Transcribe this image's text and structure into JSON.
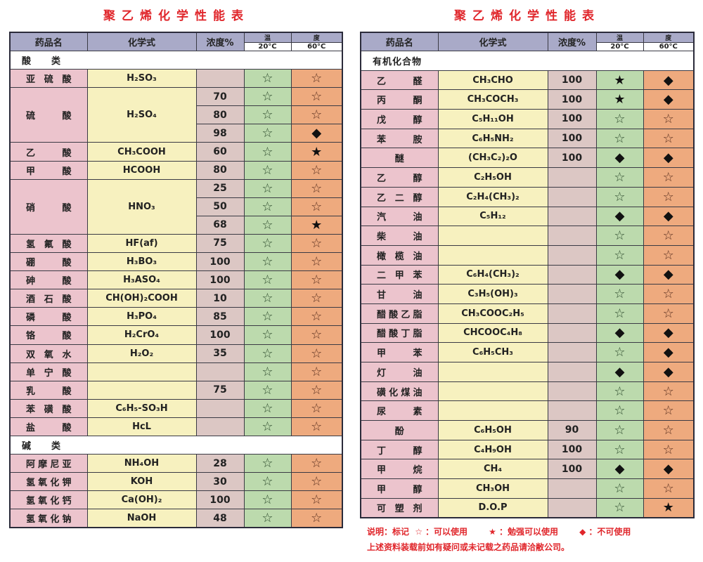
{
  "left": {
    "title": "聚乙烯化学性能表",
    "headers": {
      "name": "药品名",
      "formula": "化学式",
      "conc": "浓度%",
      "temp_a": "温",
      "temp_b": "度",
      "t20": "20°C",
      "t60": "60°C"
    },
    "sections": [
      {
        "label": "酸　　类",
        "rows": [
          {
            "name": "亚硫酸",
            "formula": "H₂SO₃",
            "items": [
              {
                "conc": "",
                "t20": "☆",
                "t60": "☆"
              }
            ]
          },
          {
            "name": "硫酸",
            "formula": "H₂SO₄",
            "items": [
              {
                "conc": "70",
                "t20": "☆",
                "t60": "☆"
              },
              {
                "conc": "80",
                "t20": "☆",
                "t60": "☆"
              },
              {
                "conc": "98",
                "t20": "☆",
                "t60": "◆"
              }
            ]
          },
          {
            "name": "乙酸",
            "formula": "CH₃COOH",
            "items": [
              {
                "conc": "60",
                "t20": "☆",
                "t60": "★"
              }
            ]
          },
          {
            "name": "甲酸",
            "formula": "HCOOH",
            "items": [
              {
                "conc": "80",
                "t20": "☆",
                "t60": "☆"
              }
            ]
          },
          {
            "name": "硝酸",
            "formula": "HNO₃",
            "items": [
              {
                "conc": "25",
                "t20": "☆",
                "t60": "☆"
              },
              {
                "conc": "50",
                "t20": "☆",
                "t60": "☆"
              },
              {
                "conc": "68",
                "t20": "☆",
                "t60": "★"
              }
            ]
          },
          {
            "name": "氢氟酸",
            "formula": "HF(af)",
            "items": [
              {
                "conc": "75",
                "t20": "☆",
                "t60": "☆"
              }
            ]
          },
          {
            "name": "硼酸",
            "formula": "H₃BO₃",
            "items": [
              {
                "conc": "100",
                "t20": "☆",
                "t60": "☆"
              }
            ]
          },
          {
            "name": "砷酸",
            "formula": "H₃ASO₄",
            "items": [
              {
                "conc": "100",
                "t20": "☆",
                "t60": "☆"
              }
            ]
          },
          {
            "name": "酒石酸",
            "formula": "CH(OH)₂COOH",
            "items": [
              {
                "conc": "10",
                "t20": "☆",
                "t60": "☆"
              }
            ]
          },
          {
            "name": "磷酸",
            "formula": "H₃PO₄",
            "items": [
              {
                "conc": "85",
                "t20": "☆",
                "t60": "☆"
              }
            ]
          },
          {
            "name": "铬酸",
            "formula": "H₂CrO₄",
            "items": [
              {
                "conc": "100",
                "t20": "☆",
                "t60": "☆"
              }
            ]
          },
          {
            "name": "双氧水",
            "formula": "H₂O₂",
            "items": [
              {
                "conc": "35",
                "t20": "☆",
                "t60": "☆"
              }
            ]
          },
          {
            "name": "单宁酸",
            "formula": "",
            "items": [
              {
                "conc": "",
                "t20": "☆",
                "t60": "☆"
              }
            ]
          },
          {
            "name": "乳酸",
            "formula": "",
            "items": [
              {
                "conc": "75",
                "t20": "☆",
                "t60": "☆"
              }
            ]
          },
          {
            "name": "苯磺酸",
            "formula": "C₆H₅-SO₃H",
            "items": [
              {
                "conc": "",
                "t20": "☆",
                "t60": "☆"
              }
            ]
          },
          {
            "name": "盐酸",
            "formula": "HcL",
            "items": [
              {
                "conc": "",
                "t20": "☆",
                "t60": "☆"
              }
            ]
          }
        ]
      },
      {
        "label": "碱　　类",
        "rows": [
          {
            "name": "阿摩尼亚",
            "formula": "NH₄OH",
            "items": [
              {
                "conc": "28",
                "t20": "☆",
                "t60": "☆"
              }
            ]
          },
          {
            "name": "氢氧化钾",
            "formula": "KOH",
            "items": [
              {
                "conc": "30",
                "t20": "☆",
                "t60": "☆"
              }
            ]
          },
          {
            "name": "氢氧化钙",
            "formula": "Ca(OH)₂",
            "items": [
              {
                "conc": "100",
                "t20": "☆",
                "t60": "☆"
              }
            ]
          },
          {
            "name": "氢氧化钠",
            "formula": "NaOH",
            "items": [
              {
                "conc": "48",
                "t20": "☆",
                "t60": "☆"
              }
            ]
          }
        ]
      }
    ]
  },
  "right": {
    "title": "聚乙烯化学性能表",
    "headers": {
      "name": "药品名",
      "formula": "化学式",
      "conc": "浓度%",
      "temp_a": "温",
      "temp_b": "度",
      "t20": "20°C",
      "t60": "60°C"
    },
    "sections": [
      {
        "label": "有机化合物",
        "rows": [
          {
            "name": "乙醛",
            "formula": "CH₃CHO",
            "items": [
              {
                "conc": "100",
                "t20": "★",
                "t60": "◆"
              }
            ]
          },
          {
            "name": "丙酮",
            "formula": "CH₃COCH₃",
            "items": [
              {
                "conc": "100",
                "t20": "★",
                "t60": "◆"
              }
            ]
          },
          {
            "name": "戊醇",
            "formula": "C₅H₁₁OH",
            "items": [
              {
                "conc": "100",
                "t20": "☆",
                "t60": "☆"
              }
            ]
          },
          {
            "name": "苯胺",
            "formula": "C₆H₅NH₂",
            "items": [
              {
                "conc": "100",
                "t20": "☆",
                "t60": "☆"
              }
            ]
          },
          {
            "name": "醚",
            "formula": "(CH₃C₂)₂O",
            "items": [
              {
                "conc": "100",
                "t20": "◆",
                "t60": "◆"
              }
            ]
          },
          {
            "name": "乙醇",
            "formula": "C₂H₅OH",
            "items": [
              {
                "conc": "",
                "t20": "☆",
                "t60": "☆"
              }
            ]
          },
          {
            "name": "乙二醇",
            "formula": "C₂H₄(CH₃)₂",
            "items": [
              {
                "conc": "",
                "t20": "☆",
                "t60": "☆"
              }
            ]
          },
          {
            "name": "汽油",
            "formula": "C₅H₁₂",
            "items": [
              {
                "conc": "",
                "t20": "◆",
                "t60": "◆"
              }
            ]
          },
          {
            "name": "柴油",
            "formula": "",
            "items": [
              {
                "conc": "",
                "t20": "☆",
                "t60": "☆"
              }
            ]
          },
          {
            "name": "橄榄油",
            "formula": "",
            "items": [
              {
                "conc": "",
                "t20": "☆",
                "t60": "☆"
              }
            ]
          },
          {
            "name": "二甲苯",
            "formula": "C₆H₄(CH₃)₂",
            "items": [
              {
                "conc": "",
                "t20": "◆",
                "t60": "◆"
              }
            ]
          },
          {
            "name": "甘油",
            "formula": "C₃H₅(OH)₃",
            "items": [
              {
                "conc": "",
                "t20": "☆",
                "t60": "☆"
              }
            ]
          },
          {
            "name": "醋酸乙脂",
            "formula": "CH₃COOC₂H₅",
            "items": [
              {
                "conc": "",
                "t20": "☆",
                "t60": "☆"
              }
            ]
          },
          {
            "name": "醋酸丁脂",
            "formula": "CHCOOC₄H₈",
            "items": [
              {
                "conc": "",
                "t20": "◆",
                "t60": "◆"
              }
            ]
          },
          {
            "name": "甲苯",
            "formula": "C₆H₅CH₃",
            "items": [
              {
                "conc": "",
                "t20": "☆",
                "t60": "◆"
              }
            ]
          },
          {
            "name": "灯油",
            "formula": "",
            "items": [
              {
                "conc": "",
                "t20": "◆",
                "t60": "◆"
              }
            ]
          },
          {
            "name": "磺化煤油",
            "formula": "",
            "items": [
              {
                "conc": "",
                "t20": "☆",
                "t60": "☆"
              }
            ]
          },
          {
            "name": "尿素",
            "formula": "",
            "items": [
              {
                "conc": "",
                "t20": "☆",
                "t60": "☆"
              }
            ]
          },
          {
            "name": "酚",
            "formula": "C₆H₅OH",
            "items": [
              {
                "conc": "90",
                "t20": "☆",
                "t60": "☆"
              }
            ]
          },
          {
            "name": "丁醇",
            "formula": "C₄H₉OH",
            "items": [
              {
                "conc": "100",
                "t20": "☆",
                "t60": "☆"
              }
            ]
          },
          {
            "name": "甲烷",
            "formula": "CH₄",
            "items": [
              {
                "conc": "100",
                "t20": "◆",
                "t60": "◆"
              }
            ]
          },
          {
            "name": "甲醇",
            "formula": "CH₃OH",
            "items": [
              {
                "conc": "",
                "t20": "☆",
                "t60": "☆"
              }
            ]
          },
          {
            "name": "可塑剂",
            "formula": "D.O.P",
            "items": [
              {
                "conc": "",
                "t20": "☆",
                "t60": "★"
              }
            ]
          }
        ]
      }
    ]
  },
  "legend": {
    "prefix": "说明：标记",
    "usable_symbol": "☆",
    "usable": "：可以使用",
    "marginal_symbol": "★",
    "marginal": "：勉强可以使用",
    "unusable_symbol": "◆",
    "unusable": "：不可使用",
    "note": "上述资料装载前如有疑问或未记载之药品请洽敝公司。"
  }
}
